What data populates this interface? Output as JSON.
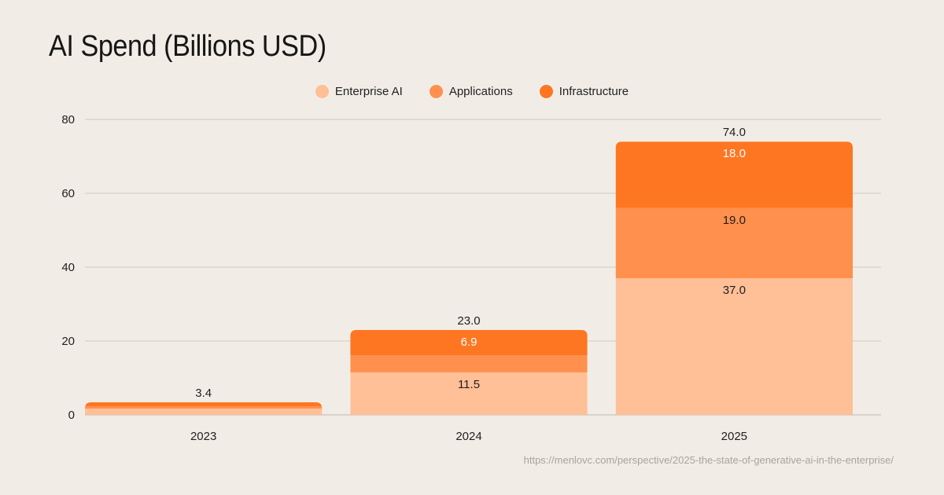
{
  "chart_data": {
    "type": "bar",
    "stacked": true,
    "title": "AI Spend (Billions USD)",
    "categories": [
      "2023",
      "2024",
      "2025"
    ],
    "series": [
      {
        "name": "Enterprise AI",
        "color": "#ffbf97",
        "values": [
          1.7,
          11.5,
          37.0
        ],
        "labels": [
          "",
          "11.5",
          "37.0"
        ]
      },
      {
        "name": "Applications",
        "color": "#ff904d",
        "values": [
          0.6,
          4.6,
          19.0
        ],
        "labels": [
          "",
          "",
          "19.0"
        ]
      },
      {
        "name": "Infrastructure",
        "color": "#fe7622",
        "values": [
          1.1,
          6.9,
          18.0
        ],
        "labels": [
          "",
          "6.9",
          "18.0"
        ]
      }
    ],
    "totals": [
      3.4,
      23.0,
      74.0
    ],
    "total_labels": [
      "3.4",
      "23.0",
      "74.0"
    ],
    "ylim": [
      0,
      80
    ],
    "yticks": [
      "0",
      "20",
      "40",
      "60",
      "80"
    ],
    "ytick_values": [
      0,
      20,
      40,
      60,
      80
    ],
    "grid": true,
    "legend_position": "top-center"
  },
  "source": "https://menlovc.com/perspective/2025-the-state-of-generative-ai-in-the-enterprise/"
}
